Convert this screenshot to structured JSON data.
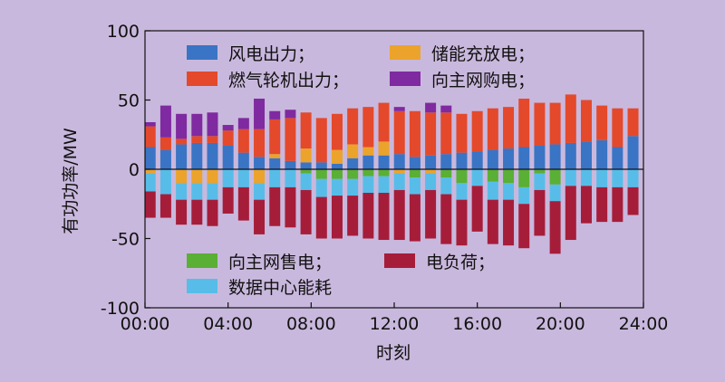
{
  "chart_data": {
    "type": "bar",
    "stacked": true,
    "xlabel": "时刻",
    "ylabel": "有功功率/MW",
    "ylim": [
      -100,
      100
    ],
    "yticks": [
      -100,
      -50,
      0,
      50,
      100
    ],
    "x": [
      0.25,
      1.0,
      1.75,
      2.5,
      3.25,
      4.0,
      4.75,
      5.5,
      6.25,
      7.0,
      7.75,
      8.5,
      9.25,
      10.0,
      10.75,
      11.5,
      12.25,
      13.0,
      13.75,
      14.5,
      15.25,
      16.0,
      16.75,
      17.5,
      18.25,
      19.0,
      19.75,
      20.5,
      21.25,
      22.0,
      22.75,
      23.5,
      24.25
    ],
    "xlim": [
      0,
      24
    ],
    "xticks": [
      "00:00",
      "04:00",
      "08:00",
      "12:00",
      "16:00",
      "20:00",
      "24:00"
    ],
    "legend_top": [
      {
        "name": "风电出力；",
        "color": "#3a74c4"
      },
      {
        "name": "储能充放电；",
        "color": "#eba32c"
      },
      {
        "name": "燃气轮机出力；",
        "color": "#e4492b"
      },
      {
        "name": "向主网购电；",
        "color": "#7f2aa0"
      }
    ],
    "legend_bottom": [
      {
        "name": "向主网售电；",
        "color": "#5aaf35"
      },
      {
        "name": "电负荷；",
        "color": "#a61d3a"
      },
      {
        "name": "数据中心能耗",
        "color": "#57bde8"
      }
    ],
    "series_positive": [
      {
        "name": "风电出力；",
        "color": "#3a74c4",
        "values": [
          16,
          14,
          18,
          19,
          19,
          17,
          12,
          9,
          8,
          6,
          5,
          5,
          4,
          8,
          10,
          10,
          11,
          9,
          10,
          11,
          12,
          13,
          14,
          15,
          16,
          17,
          18,
          19,
          20,
          21,
          16,
          24,
          0
        ]
      },
      {
        "name": "储能充放电；",
        "color": "#eba32c",
        "values": [
          0,
          0,
          0,
          0,
          0,
          0,
          0,
          0,
          3,
          0,
          10,
          0,
          10,
          10,
          6,
          10,
          0,
          0,
          0,
          0,
          0,
          0,
          0,
          0,
          0,
          0,
          0,
          0,
          0,
          0,
          0,
          0,
          0
        ]
      },
      {
        "name": "燃气轮机出力；",
        "color": "#e4492b",
        "values": [
          15,
          9,
          4,
          5,
          5,
          11,
          17,
          20,
          25,
          31,
          26,
          32,
          26,
          26,
          29,
          28,
          31,
          33,
          31,
          30,
          28,
          29,
          30,
          30,
          35,
          31,
          30,
          35,
          30,
          25,
          28,
          20,
          0
        ]
      },
      {
        "name": "向主网购电；",
        "color": "#7f2aa0",
        "values": [
          3,
          23,
          18,
          16,
          17,
          4,
          8,
          22,
          6,
          6,
          0,
          0,
          0,
          0,
          0,
          0,
          3,
          0,
          7,
          5,
          0,
          0,
          0,
          0,
          0,
          0,
          0,
          0,
          0,
          0,
          0,
          0,
          0
        ]
      }
    ],
    "series_negative": [
      {
        "name": "储能充放电；",
        "color": "#eba32c",
        "values": [
          -3,
          0,
          -10,
          -10,
          -10,
          0,
          0,
          -10,
          0,
          0,
          0,
          0,
          0,
          0,
          0,
          0,
          -3,
          0,
          -3,
          0,
          0,
          0,
          0,
          0,
          0,
          0,
          0,
          0,
          0,
          0,
          0,
          0,
          0
        ]
      },
      {
        "name": "向主网售电；",
        "color": "#5aaf35",
        "values": [
          0,
          0,
          0,
          0,
          0,
          0,
          0,
          0,
          0,
          0,
          -3,
          -7,
          -7,
          -7,
          -5,
          -5,
          0,
          -6,
          0,
          -6,
          -10,
          0,
          -9,
          -10,
          -13,
          -3,
          -11,
          0,
          0,
          0,
          0,
          0,
          0
        ]
      },
      {
        "name": "数据中心能耗",
        "color": "#57bde8",
        "values": [
          -13,
          -18,
          -12,
          -12,
          -12,
          -13,
          -13,
          -12,
          -13,
          -13,
          -12,
          -13,
          -12,
          -12,
          -12,
          -12,
          -12,
          -12,
          -12,
          -12,
          -12,
          -12,
          -13,
          -12,
          -12,
          -12,
          -12,
          -12,
          -12,
          -13,
          -13,
          -13,
          0
        ]
      },
      {
        "name": "电负荷；",
        "color": "#a61d3a",
        "values": [
          -19,
          -17,
          -18,
          -18,
          -19,
          -19,
          -24,
          -25,
          -28,
          -29,
          -32,
          -30,
          -31,
          -29,
          -33,
          -34,
          -36,
          -34,
          -35,
          -36,
          -33,
          -33,
          -32,
          -33,
          -32,
          -33,
          -38,
          -39,
          -27,
          -25,
          -25,
          -20,
          0
        ]
      }
    ]
  }
}
